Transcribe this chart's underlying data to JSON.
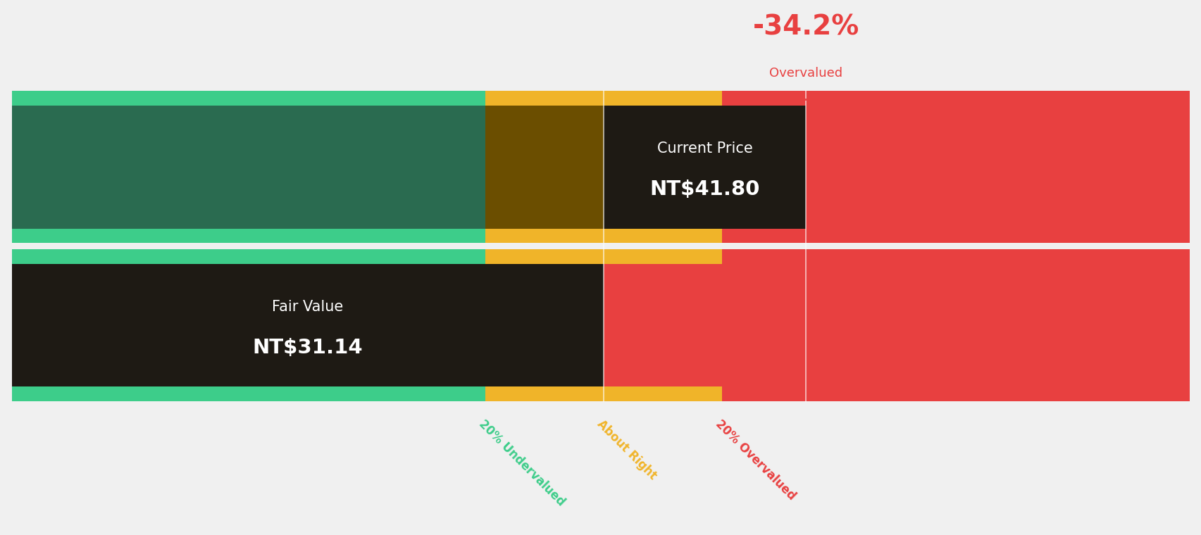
{
  "bg_color": "#f0f0f0",
  "green_light": "#3dcd8a",
  "green_dark": "#2a6b50",
  "gold_light": "#f0b429",
  "gold_dark": "#6b4e00",
  "red_light": "#e84040",
  "dark_box": "#1e1a14",
  "red_color": "#e84040",
  "label_green": "#3dcd8a",
  "label_gold": "#f0b429",
  "label_red": "#e84040",
  "fair_value": 31.14,
  "current_price": 41.8,
  "price_min": 0.0,
  "price_max": 62.0,
  "underval_boundary": 24.912,
  "overval_boundary": 37.368,
  "pct_text": "-34.2%",
  "overvalued_text": "Overvalued",
  "current_price_label": "Current Price",
  "current_price_value": "NT$41.80",
  "fair_value_label": "Fair Value",
  "fair_value_value": "NT$31.14",
  "label_undervalued": "20% Undervalued",
  "label_about_right": "About Right",
  "label_overvalued": "20% Overvalued"
}
